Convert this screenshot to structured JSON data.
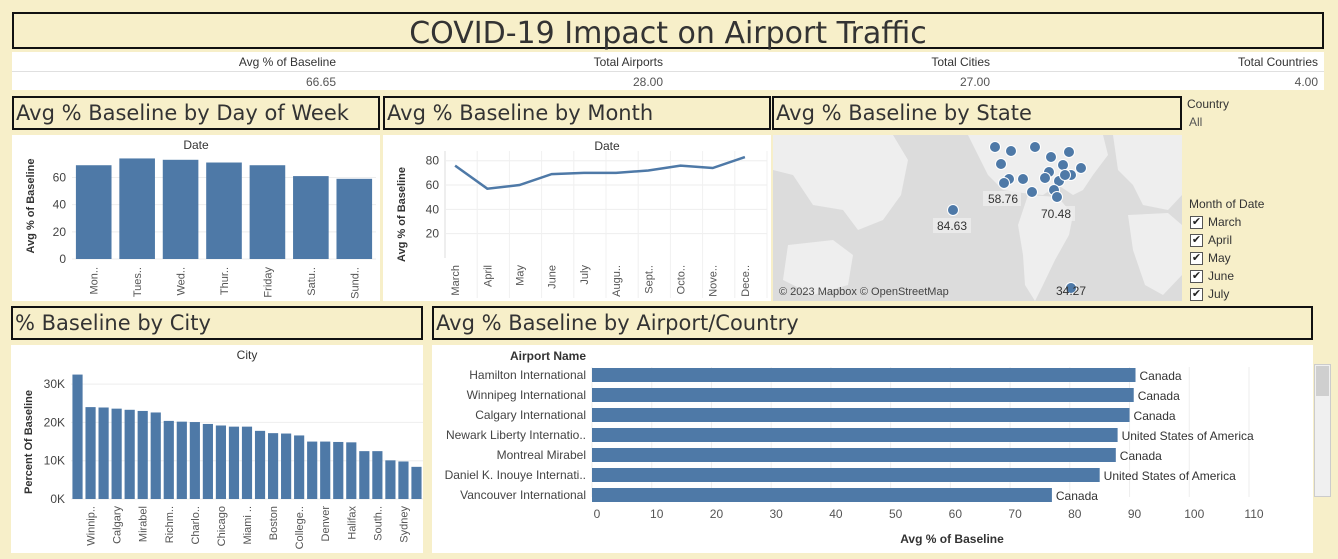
{
  "title": "COVID-19 Impact on Airport Traffic",
  "kpis": [
    {
      "label": "Avg % of Baseline",
      "value": "66.65"
    },
    {
      "label": "Total Airports",
      "value": "28.00"
    },
    {
      "label": "Total Cities",
      "value": "27.00"
    },
    {
      "label": "Total Countries",
      "value": "4.00"
    }
  ],
  "sections": {
    "day_of_week": "Avg % Baseline  by Day of Week",
    "by_month": "Avg % Baseline by Month",
    "by_state": "Avg %  Baseline by State",
    "by_city": "% Baseline by City",
    "by_airport": "Avg % Baseline by Airport/Country"
  },
  "filters": {
    "country_label": "Country",
    "country_value": "All",
    "month_label": "Month of Date",
    "months": [
      "March",
      "April",
      "May",
      "June",
      "July"
    ]
  },
  "map": {
    "copyright": "© 2023 Mapbox © OpenStreetMap",
    "labels": [
      "58.76",
      "70.48",
      "84.63",
      "34.27"
    ]
  },
  "chart_data": [
    {
      "type": "bar",
      "title": "Date",
      "ylabel": "Avg % of Baseline",
      "categories": [
        "Mon..",
        "Tues..",
        "Wed..",
        "Thur..",
        "Friday",
        "Satu..",
        "Sund.."
      ],
      "values": [
        69,
        74,
        73,
        71,
        69,
        61,
        59
      ],
      "yticks": [
        0,
        20,
        40,
        60
      ],
      "ylim": [
        0,
        78
      ]
    },
    {
      "type": "line",
      "title": "Date",
      "ylabel": "Avg % of Baseline",
      "categories": [
        "March",
        "April",
        "May",
        "June",
        "July",
        "Augu..",
        "Sept..",
        "Octo..",
        "Nove..",
        "Dece.."
      ],
      "values": [
        76,
        57,
        60,
        69,
        70,
        70,
        72,
        76,
        74,
        83
      ],
      "yticks": [
        20,
        40,
        60,
        80
      ],
      "ylim": [
        0,
        88
      ]
    },
    {
      "type": "bar",
      "title": "City",
      "ylabel": "Percent Of Baseline",
      "tick_labels": [
        "Winnip..",
        "Calgary",
        "Mirabel",
        "Richm..",
        "Charlo..",
        "Chicago",
        "Miami ..",
        "Boston",
        "College..",
        "Denver",
        "Halifax",
        "South..",
        "Sydney"
      ],
      "values": [
        32500,
        24000,
        23900,
        23600,
        23300,
        23000,
        22600,
        20400,
        20200,
        20100,
        19600,
        19200,
        18900,
        18900,
        17800,
        17200,
        17100,
        16600,
        15000,
        15000,
        14900,
        14800,
        12500,
        12500,
        10100,
        9800,
        8400
      ],
      "yticks": [
        0,
        10000,
        20000,
        30000
      ],
      "ytick_labels": [
        "0K",
        "10K",
        "20K",
        "30K"
      ],
      "ylim": [
        0,
        35000
      ]
    },
    {
      "type": "bar",
      "orientation": "horizontal",
      "header": "Airport Name",
      "xlabel": "Avg % of Baseline",
      "categories": [
        "Hamilton International",
        "Winnipeg International",
        "Calgary International",
        "Newark Liberty Internatio..",
        "Montreal Mirabel",
        "Daniel K. Inouye Internati..",
        "Vancouver International"
      ],
      "values": [
        91,
        90.7,
        90,
        88,
        87.7,
        85,
        77
      ],
      "countries": [
        "Canada",
        "Canada",
        "Canada",
        "United States of America",
        "Canada",
        "United States of America",
        "Canada"
      ],
      "xticks": [
        0,
        10,
        20,
        30,
        40,
        50,
        60,
        70,
        80,
        90,
        100,
        110
      ],
      "xlim": [
        0,
        110
      ]
    }
  ]
}
